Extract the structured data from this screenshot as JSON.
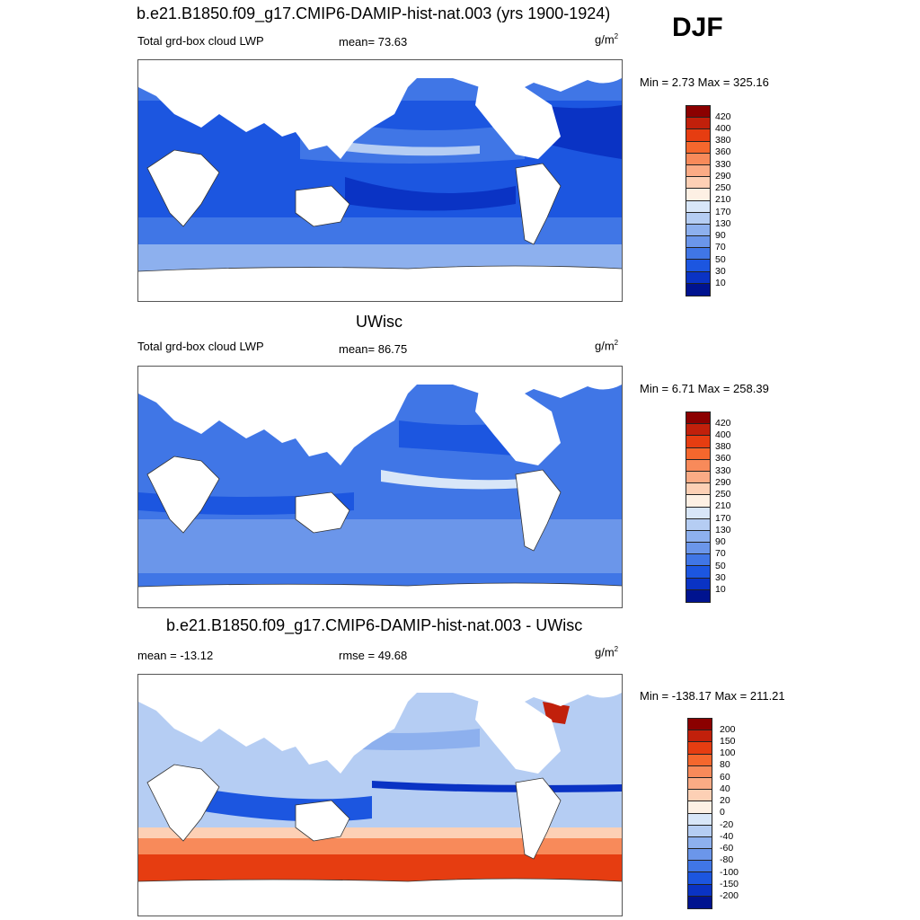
{
  "season": "DJF",
  "panels": [
    {
      "title": "b.e21.B1850.f09_g17.CMIP6-DAMIP-hist-nat.003 (yrs 1900-1924)",
      "left_label": "Total grd-box cloud LWP",
      "mid_label": "mean=  73.63",
      "unit": "g/m",
      "unit_sup": "2",
      "minmax": "Min =   2.73 Max = 325.16",
      "colorbar": {
        "labels": [
          "420",
          "400",
          "380",
          "360",
          "330",
          "290",
          "250",
          "210",
          "170",
          "130",
          "90",
          "70",
          "50",
          "30",
          "10"
        ],
        "colors": [
          "#8b0000",
          "#c1200b",
          "#e63d11",
          "#f5672d",
          "#f88a5a",
          "#fbab85",
          "#fdd0b5",
          "#fdf0e4",
          "#d8e6f8",
          "#b5cdf3",
          "#8db0ee",
          "#6b96ea",
          "#4076e6",
          "#1c56e0",
          "#0a33c4",
          "#00138f"
        ]
      }
    },
    {
      "title": "UWisc",
      "left_label": "Total grd-box cloud LWP",
      "mid_label": "mean=  86.75",
      "unit": "g/m",
      "unit_sup": "2",
      "minmax": "Min =   6.71 Max = 258.39",
      "colorbar": {
        "labels": [
          "420",
          "400",
          "380",
          "360",
          "330",
          "290",
          "250",
          "210",
          "170",
          "130",
          "90",
          "70",
          "50",
          "30",
          "10"
        ],
        "colors": [
          "#8b0000",
          "#c1200b",
          "#e63d11",
          "#f5672d",
          "#f88a5a",
          "#fbab85",
          "#fdd0b5",
          "#fdf0e4",
          "#d8e6f8",
          "#b5cdf3",
          "#8db0ee",
          "#6b96ea",
          "#4076e6",
          "#1c56e0",
          "#0a33c4",
          "#00138f"
        ]
      }
    },
    {
      "title": "b.e21.B1850.f09_g17.CMIP6-DAMIP-hist-nat.003 - UWisc",
      "left_label": "mean = -13.12",
      "mid_label": "rmse =  49.68",
      "unit": "g/m",
      "unit_sup": "2",
      "minmax": "Min = -138.17 Max = 211.21",
      "colorbar": {
        "labels": [
          "200",
          "150",
          "100",
          "80",
          "60",
          "40",
          "20",
          "0",
          "-20",
          "-40",
          "-60",
          "-80",
          "-100",
          "-150",
          "-200"
        ],
        "colors": [
          "#8b0000",
          "#c1200b",
          "#e63d11",
          "#f5672d",
          "#f88a5a",
          "#fbab85",
          "#fdd0b5",
          "#fdf0e4",
          "#d8e6f8",
          "#b5cdf3",
          "#8db0ee",
          "#6b96ea",
          "#4076e6",
          "#1c56e0",
          "#0a33c4",
          "#00138f"
        ]
      }
    }
  ]
}
